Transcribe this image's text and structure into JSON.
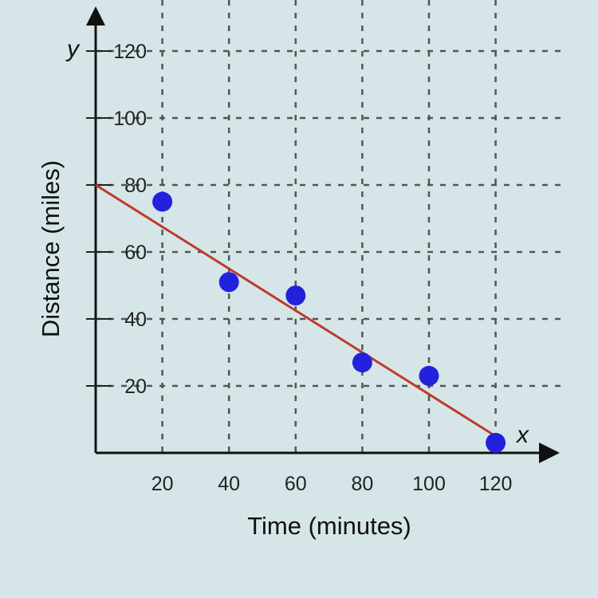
{
  "chart_data": {
    "type": "scatter",
    "title": "",
    "xlabel": "Time (minutes)",
    "ylabel": "Distance (miles)",
    "x_axis_var": "x",
    "y_axis_var": "y",
    "xlim": [
      0,
      130
    ],
    "ylim": [
      0,
      130
    ],
    "x_ticks": [
      20,
      40,
      60,
      80,
      100,
      120
    ],
    "y_ticks": [
      20,
      40,
      60,
      80,
      100,
      120
    ],
    "grid": true,
    "grid_style": "dashed",
    "series": [
      {
        "name": "data points",
        "kind": "scatter",
        "color": "#2222dd",
        "x": [
          20,
          40,
          60,
          80,
          100,
          120
        ],
        "y": [
          75,
          51,
          47,
          27,
          23,
          3
        ]
      },
      {
        "name": "trend line",
        "kind": "line",
        "color": "#c0392b",
        "x": [
          0,
          120
        ],
        "y": [
          80,
          5
        ]
      }
    ]
  },
  "labels": {
    "xlabel": "Time (minutes)",
    "ylabel": "Distance (miles)",
    "x_var": "x",
    "y_var": "y",
    "x_ticks": [
      "20",
      "40",
      "60",
      "80",
      "100",
      "120"
    ],
    "y_ticks": [
      "20",
      "40",
      "60",
      "80",
      "100",
      "120"
    ]
  }
}
